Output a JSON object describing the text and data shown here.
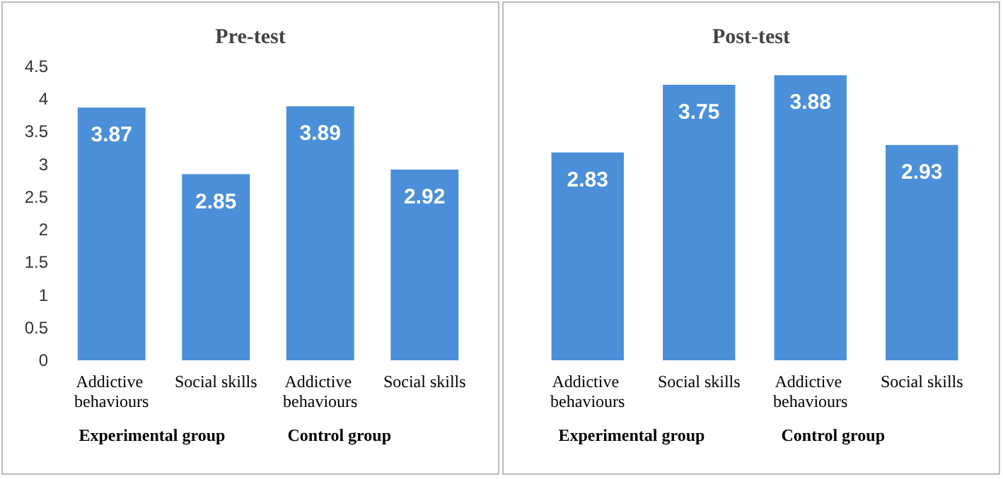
{
  "chart_data": [
    {
      "type": "bar",
      "title": "Pre-test",
      "categories": [
        "Addictive behaviours",
        "Social skills",
        "Addictive behaviours",
        "Social skills"
      ],
      "values": [
        3.87,
        2.85,
        3.89,
        2.92
      ],
      "color": "#4a8fd8",
      "data_labels": true,
      "ylim": [
        0,
        4.5
      ],
      "yticks": [
        0,
        0.5,
        1,
        1.5,
        2,
        2.5,
        3,
        3.5,
        4,
        4.5
      ],
      "grid": false,
      "annotations": [
        "Experimental group",
        "Control group"
      ]
    },
    {
      "type": "bar",
      "title": "Post-test",
      "categories": [
        "Addictive behaviours",
        "Social skills",
        "Addictive behaviours",
        "Social skills"
      ],
      "values": [
        2.83,
        3.75,
        3.88,
        2.93
      ],
      "color": "#4a8fd8",
      "data_labels": true,
      "tick_labels": "x",
      "grid": false,
      "annotations": [
        "Experimental group",
        "Control group"
      ]
    }
  ]
}
